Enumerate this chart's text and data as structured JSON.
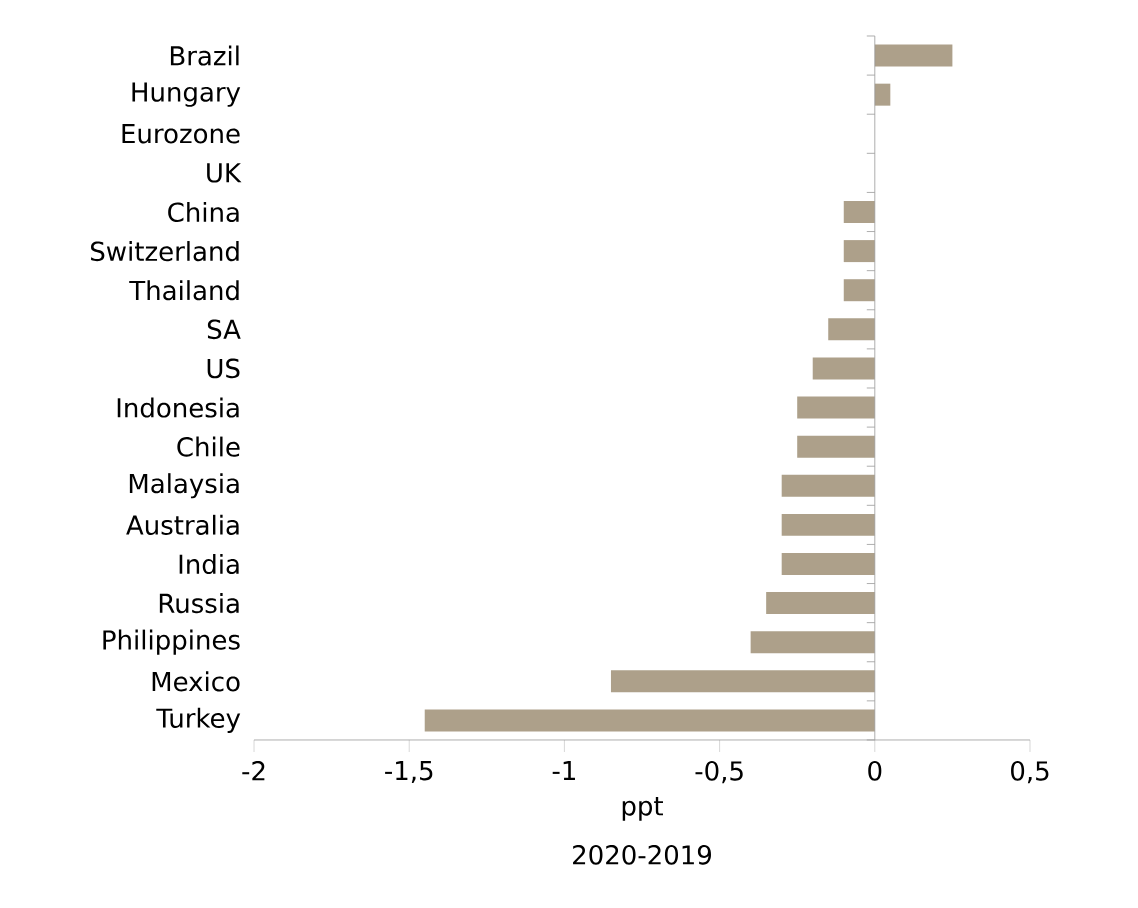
{
  "chart_data": {
    "type": "bar",
    "orientation": "horizontal",
    "xlabel": "ppt",
    "annotations": [
      "2020-2019"
    ],
    "categories": [
      "Brazil",
      "Hungary",
      "Eurozone",
      "UK",
      "China",
      "Switzerland",
      "Thailand",
      "SA",
      "US",
      "Indonesia",
      "Chile",
      "Malaysia",
      "Australia",
      "India",
      "Russia",
      "Philippines",
      "Mexico",
      "Turkey"
    ],
    "values": [
      0.25,
      0.05,
      0,
      0,
      -0.1,
      -0.1,
      -0.1,
      -0.15,
      -0.2,
      -0.25,
      -0.25,
      -0.3,
      -0.3,
      -0.3,
      -0.35,
      -0.4,
      -0.85,
      -1.45
    ],
    "color": "#ada08a",
    "xlim": [
      -2,
      0.5
    ],
    "xticks": [
      -2,
      {
        "value": -1.5,
        "label": "-1,5"
      },
      -1,
      {
        "value": -0.5,
        "label": "-0,5"
      },
      0,
      {
        "value": 0.5,
        "label": "0,5"
      }
    ]
  }
}
